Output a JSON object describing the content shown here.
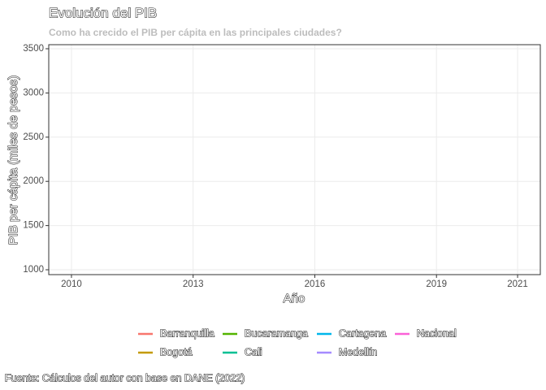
{
  "chart_data": {
    "type": "line",
    "title": "Evolución del PIB",
    "subtitle": "Como ha crecido el PIB per cápita en las principales ciudades?",
    "caption": "Fuente: Cálculos del autor con base en DANE (2022)",
    "x_label": "Año",
    "y_label": "PIB per cápita (miles de pesos)",
    "x": [],
    "series": [
      {
        "name": "Barranquilla",
        "color": "#F8766D",
        "values": []
      },
      {
        "name": "Bogotá",
        "color": "#C49A00",
        "values": []
      },
      {
        "name": "Bucaramanga",
        "color": "#53B400",
        "values": []
      },
      {
        "name": "Cali",
        "color": "#00C094",
        "values": []
      },
      {
        "name": "Cartagena",
        "color": "#00B6EB",
        "values": []
      },
      {
        "name": "Medellín",
        "color": "#A58AFF",
        "values": []
      },
      {
        "name": "Nacional",
        "color": "#FB61D7",
        "values": []
      }
    ],
    "xlim": [
      2009.44,
      2021.56
    ],
    "xticks": [
      2010,
      2013,
      2016,
      2019,
      2021
    ],
    "ylim": [
      945,
      3546
    ],
    "yticks": [
      1000,
      1500,
      2000,
      2500,
      3000,
      3500
    ],
    "grid": true,
    "legend": "bottom"
  }
}
